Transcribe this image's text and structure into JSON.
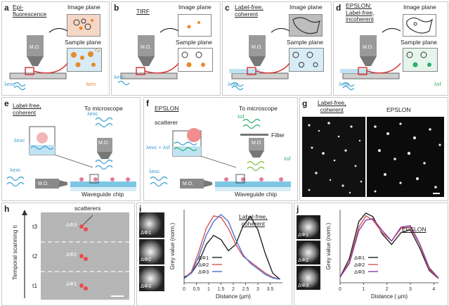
{
  "colors": {
    "epi_image": "#f6d7c6",
    "label_free_image": "#bdbdbd",
    "excitation": "#3a9fd0",
    "emission": "#e88a2a",
    "scatter_red": "#d23b3b",
    "green": "#2fae6a",
    "line_black": "#222222",
    "line_red": "#d9534f",
    "line_blue": "#4a6fd6",
    "line_purple": "#8a3fa8"
  },
  "panels": {
    "a": {
      "letter": "a",
      "title_l1": "Epi-",
      "title_l2": "fluorescence",
      "image_plane": "Image plane",
      "sample_plane": "Sample plane",
      "mo": "M.O.",
      "lambda_exc": "λexc",
      "lambda_em": "λem"
    },
    "b": {
      "letter": "b",
      "title": "TIRF",
      "image_plane": "Image plane",
      "sample_plane": "Sample plane",
      "mo": "M.O.",
      "lambda_exc": "λexc"
    },
    "c": {
      "letter": "c",
      "title_l1": "Label-free,",
      "title_l2": "coherent",
      "image_plane": "Image plane",
      "sample_plane": "Sample plane",
      "mo": "M.O.",
      "lambda_exc": "λexc"
    },
    "d": {
      "letter": "d",
      "title_l1": "EPSLON:",
      "title_l2": "Label-free,",
      "title_l3": "incoherent",
      "image_plane": "Image plane",
      "sample_plane": "Sample plane",
      "mo": "M.O.",
      "lambda_exc": "λexc",
      "lambda_sf": "λsf"
    },
    "e": {
      "letter": "e",
      "title_l1": "Label-free,",
      "title_l2": "coherent",
      "to_microscope": "To microscope",
      "mo_top": "M.O.",
      "mo_side": "M.O.",
      "lambda_exc_1": "λexc",
      "lambda_exc_2": "λexc",
      "lambda_exc_3": "λexc",
      "chip": "Waveguide chip"
    },
    "f": {
      "letter": "f",
      "title": "EPSLON",
      "to_microscope": "To microscope",
      "scatterer": "scatterer",
      "filter": "Filter",
      "lambda_sf_1": "λsf",
      "lambda_sf_2": "λsf",
      "lambda_mix": "λexc + λsf",
      "lambda_exc": "λexc",
      "mo_top": "M.O.",
      "mo_side": "M.O.",
      "chip": "Waveguide chip"
    },
    "g": {
      "letter": "g",
      "left_l1": "Label-free,",
      "left_l2": "coherent",
      "right": "EPSLON"
    },
    "h": {
      "letter": "h",
      "axis": "Temporal scanning ti",
      "scatterers": "scatterers",
      "t3": "t3",
      "t2": "t2",
      "t1": "t1",
      "phi3": "ΔΦ3",
      "phi2": "ΔΦ2",
      "phi1": "ΔΦ1"
    },
    "i": {
      "letter": "i",
      "title_l1": "Label-free,",
      "title_l2": "coherent",
      "thumb1": "ΔΦ1",
      "thumb2": "ΔΦ2",
      "thumb3": "ΔΦ3",
      "legend1": "ΔΦ1",
      "legend2": "ΔΦ2",
      "legend3": "ΔΦ3"
    },
    "j": {
      "letter": "j",
      "title": "EPSLON",
      "thumb1": "ΔΦ1",
      "thumb2": "ΔΦ2",
      "thumb3": "ΔΦ3",
      "legend1": "ΔΦ1",
      "legend2": "ΔΦ2",
      "legend3": "ΔΦ3"
    }
  },
  "chart_data": [
    {
      "type": "line",
      "panel": "i",
      "xlabel": "Distance (µm)",
      "ylabel": "Grey value (norm.)",
      "xlim": [
        0,
        4
      ],
      "xticks": [
        0,
        0.5,
        1,
        1.5,
        2,
        2.5,
        3,
        3.5
      ],
      "x": [
        0,
        0.3,
        0.6,
        0.9,
        1.2,
        1.5,
        1.8,
        2.1,
        2.4,
        2.7,
        3.0,
        3.3,
        3.6,
        3.9
      ],
      "series": [
        {
          "name": "ΔΦ1",
          "color": "#222222",
          "values": [
            0.08,
            0.14,
            0.3,
            0.55,
            0.68,
            0.62,
            0.46,
            0.55,
            0.82,
            0.95,
            0.76,
            0.42,
            0.14,
            0.05
          ]
        },
        {
          "name": "ΔΦ2",
          "color": "#d9534f",
          "values": [
            0.06,
            0.16,
            0.45,
            0.78,
            0.96,
            0.94,
            0.78,
            0.55,
            0.38,
            0.3,
            0.22,
            0.14,
            0.08,
            0.05
          ]
        },
        {
          "name": "ΔΦ3",
          "color": "#4a6fd6",
          "values": [
            0.06,
            0.14,
            0.38,
            0.68,
            0.88,
            0.98,
            0.88,
            0.62,
            0.4,
            0.28,
            0.2,
            0.12,
            0.07,
            0.05
          ]
        }
      ]
    },
    {
      "type": "line",
      "panel": "j",
      "xlabel": "Distance ( µm)",
      "ylabel": "Grey value (norm.)",
      "xlim": [
        0,
        4.2
      ],
      "xticks": [
        0,
        1,
        2,
        3,
        4
      ],
      "x": [
        0,
        0.4,
        0.8,
        1.1,
        1.4,
        1.8,
        2.2,
        2.6,
        3.0,
        3.4,
        3.8,
        4.2
      ],
      "series": [
        {
          "name": "ΔΦ1",
          "color": "#222222",
          "values": [
            0.08,
            0.35,
            0.88,
            1.0,
            0.95,
            0.7,
            0.55,
            0.72,
            0.76,
            0.5,
            0.18,
            0.06
          ]
        },
        {
          "name": "ΔΦ2",
          "color": "#d9534f",
          "values": [
            0.08,
            0.3,
            0.8,
            0.96,
            0.9,
            0.72,
            0.6,
            0.78,
            0.8,
            0.55,
            0.2,
            0.06
          ]
        },
        {
          "name": "ΔΦ3",
          "color": "#8a3fa8",
          "values": [
            0.08,
            0.28,
            0.75,
            0.9,
            0.92,
            0.75,
            0.6,
            0.8,
            0.82,
            0.56,
            0.22,
            0.07
          ]
        }
      ]
    }
  ]
}
